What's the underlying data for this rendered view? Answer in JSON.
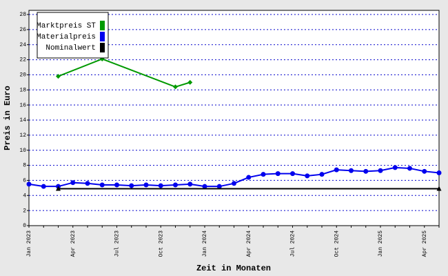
{
  "chart_data": {
    "type": "line",
    "xlabel": "Zeit in Monaten",
    "ylabel": "Preis in Euro",
    "categories": [
      "Jan 2023",
      null,
      null,
      "Apr 2023",
      null,
      null,
      "Jul 2023",
      null,
      null,
      "Oct 2023",
      null,
      null,
      "Jan 2024",
      null,
      null,
      "Apr 2024",
      null,
      null,
      "Jul 2024",
      null,
      null,
      "Oct 2024",
      null,
      null,
      "Jan 2025",
      null,
      null,
      "Apr 2025",
      null
    ],
    "series": [
      {
        "name": "Marktpreis ST",
        "color": "#009900",
        "marker": "diamond",
        "values": [
          null,
          null,
          19.8,
          null,
          null,
          22.1,
          null,
          null,
          null,
          null,
          18.4,
          19.0,
          null,
          null,
          null,
          null,
          null,
          null,
          null,
          null,
          null,
          null,
          null,
          null,
          null,
          null,
          null,
          null,
          null
        ]
      },
      {
        "name": "Materialpreis",
        "color": "#0000ee",
        "marker": "circle",
        "values": [
          5.5,
          5.2,
          5.2,
          5.7,
          5.6,
          5.4,
          5.4,
          5.3,
          5.4,
          5.3,
          5.4,
          5.5,
          5.2,
          5.2,
          5.6,
          6.4,
          6.8,
          6.9,
          6.9,
          6.6,
          6.8,
          7.4,
          7.3,
          7.2,
          7.3,
          7.7,
          7.6,
          7.2,
          7.0
        ]
      },
      {
        "name": "Nominalwert",
        "color": "#000000",
        "marker": "triangle",
        "values": [
          null,
          null,
          4.9,
          null,
          null,
          null,
          null,
          null,
          null,
          null,
          null,
          null,
          null,
          null,
          null,
          null,
          null,
          null,
          null,
          null,
          null,
          null,
          null,
          null,
          null,
          null,
          null,
          null,
          4.9
        ]
      }
    ],
    "ylim": [
      0,
      28
    ],
    "yticks": [
      0,
      2,
      4,
      6,
      8,
      10,
      12,
      14,
      16,
      18,
      20,
      22,
      24,
      26,
      28
    ],
    "grid": true,
    "grid_color": "#0000cc",
    "legend": "upper left"
  }
}
